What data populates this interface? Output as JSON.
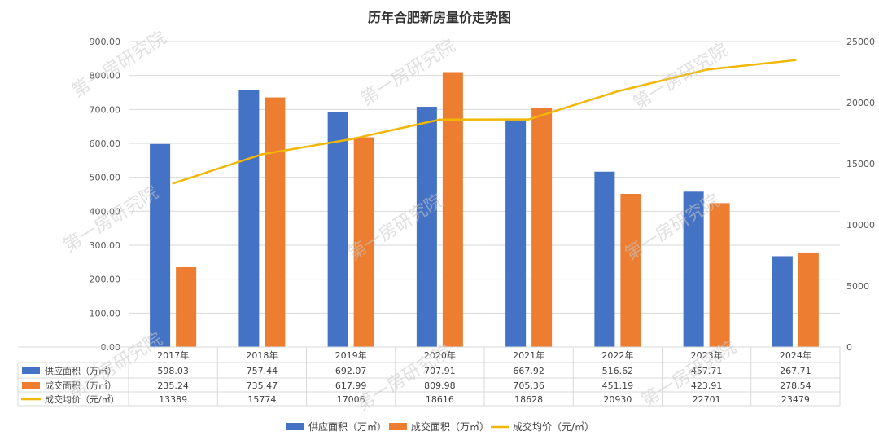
{
  "chart_data": {
    "type": "bar",
    "title": "历年合肥新房量价走势图",
    "categories": [
      "2017年",
      "2018年",
      "2019年",
      "2020年",
      "2021年",
      "2022年",
      "2023年",
      "2024年"
    ],
    "series": [
      {
        "name": "供应面积（万㎡）",
        "kind": "bar",
        "axis": "left",
        "color": "#4472C4",
        "values": [
          598.03,
          757.44,
          692.07,
          707.91,
          667.92,
          516.62,
          457.71,
          267.71
        ],
        "labels": [
          "598.03",
          "757.44",
          "692.07",
          "707.91",
          "667.92",
          "516.62",
          "457.71",
          "267.71"
        ]
      },
      {
        "name": "成交面积（万㎡）",
        "kind": "bar",
        "axis": "left",
        "color": "#ED7D31",
        "values": [
          235.24,
          735.47,
          617.99,
          809.98,
          705.36,
          451.19,
          423.91,
          278.54
        ],
        "labels": [
          "235.24",
          "735.47",
          "617.99",
          "809.98",
          "705.36",
          "451.19",
          "423.91",
          "278.54"
        ]
      },
      {
        "name": "成交均价（元/㎡）",
        "kind": "line",
        "axis": "right",
        "color": "#F2B705",
        "values": [
          13389,
          15774,
          17006,
          18616,
          18628,
          20930,
          22701,
          23479
        ],
        "labels": [
          "13389",
          "15774",
          "17006",
          "18616",
          "18628",
          "20930",
          "22701",
          "23479"
        ]
      }
    ],
    "y_left": {
      "min": 0,
      "max": 900,
      "step": 100,
      "tick_labels": [
        "0.00",
        "100.00",
        "200.00",
        "300.00",
        "400.00",
        "500.00",
        "600.00",
        "700.00",
        "800.00",
        "900.00"
      ]
    },
    "y_right": {
      "min": 0,
      "max": 25000,
      "step": 5000,
      "tick_labels": [
        "0",
        "5000",
        "10000",
        "15000",
        "20000",
        "25000"
      ]
    },
    "grid": true,
    "legend_position": "bottom",
    "data_table": true
  },
  "watermark": {
    "text": "第一房研究院"
  }
}
